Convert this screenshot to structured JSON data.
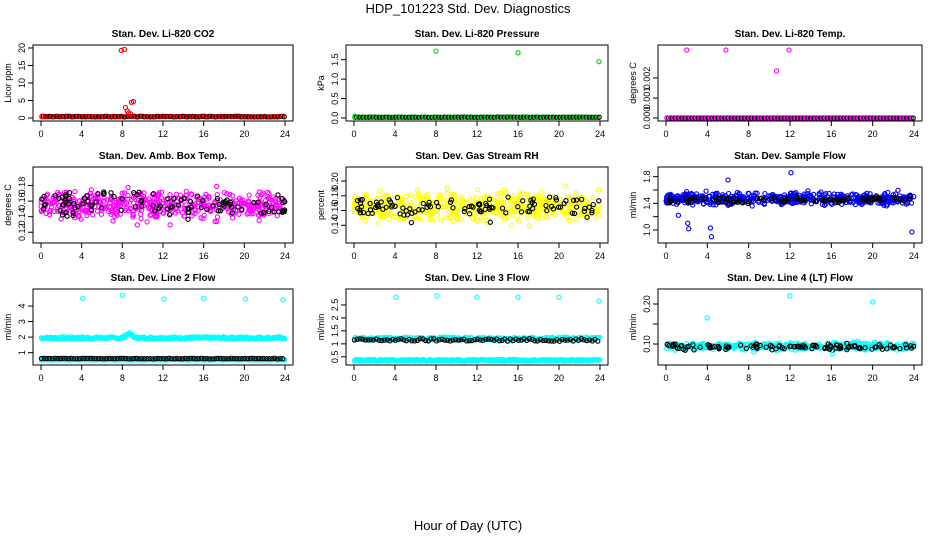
{
  "title": "HDP_101223  Std. Dev. Diagnostics",
  "xlabel": "Hour of Day (UTC)",
  "chart_data": [
    {
      "id": "p1",
      "type": "scatter",
      "title": "Stan. Dev. Li-820 CO2",
      "ylabel": "Licor ppm",
      "xlim": [
        0,
        24
      ],
      "xticks": [
        0,
        4,
        8,
        12,
        16,
        20,
        24
      ],
      "xtick_labels": [
        "0",
        "4",
        "8",
        "12",
        "16",
        "20",
        "24"
      ],
      "ylim": [
        0,
        20
      ],
      "yticks": [
        0,
        5,
        10,
        15,
        20
      ],
      "ytick_labels": [
        "0",
        "5",
        "10",
        "15",
        "20"
      ],
      "base_color": "#000000",
      "baseline": {
        "color": "#ff0000",
        "center": 0.4,
        "jitter": 0.2
      },
      "series": [
        {
          "name": "red",
          "color": "#ff0000",
          "points": [
            [
              0.1,
              0.5
            ],
            [
              7.9,
              19.3
            ],
            [
              8.2,
              19.6
            ],
            [
              8.3,
              3.0
            ],
            [
              8.5,
              2.0
            ],
            [
              8.6,
              1.4
            ],
            [
              8.9,
              4.5
            ],
            [
              9.1,
              4.7
            ],
            [
              8.8,
              1.2
            ]
          ]
        }
      ]
    },
    {
      "id": "p2",
      "type": "scatter",
      "title": "Stan. Dev. Li-820 Pressure",
      "ylabel": "kPa",
      "xlim": [
        0,
        24
      ],
      "xticks": [
        0,
        4,
        8,
        12,
        16,
        20,
        24
      ],
      "xtick_labels": [
        "0",
        "4",
        "8",
        "12",
        "16",
        "20",
        "24"
      ],
      "ylim": [
        0,
        1.8
      ],
      "yticks": [
        0,
        0.5,
        1.0,
        1.5
      ],
      "ytick_labels": [
        "0.0",
        "0.5",
        "1.0",
        "1.5"
      ],
      "base_color": "#000000",
      "baseline": {
        "color": "#00cc00",
        "center": 0.02,
        "jitter": 0.01
      },
      "series": [
        {
          "name": "green",
          "color": "#00cc00",
          "points": [
            [
              8.0,
              1.72
            ],
            [
              16.0,
              1.68
            ],
            [
              23.9,
              1.45
            ],
            [
              0.1,
              0.05
            ]
          ]
        }
      ]
    },
    {
      "id": "p3",
      "type": "scatter",
      "title": "Stan. Dev. Li-820 Temp.",
      "ylabel": "degrees C",
      "xlim": [
        0,
        24
      ],
      "xticks": [
        0,
        4,
        8,
        12,
        16,
        20,
        24
      ],
      "xtick_labels": [
        "0",
        "4",
        "8",
        "12",
        "16",
        "20",
        "24"
      ],
      "ylim": [
        0,
        0.0035
      ],
      "yticks": [
        0,
        0.001,
        0.002
      ],
      "ytick_labels": [
        "0.000",
        "0.001",
        "0.002"
      ],
      "base_color": "#000000",
      "baseline": {
        "color": "#ff00ff",
        "center": 0.0,
        "jitter": 0
      },
      "series": [
        {
          "name": "magenta",
          "color": "#ff00ff",
          "points": [
            [
              2.0,
              0.0034
            ],
            [
              5.8,
              0.0034
            ],
            [
              11.9,
              0.0034
            ],
            [
              10.7,
              0.00235
            ],
            [
              0.1,
              0.0
            ]
          ]
        }
      ]
    },
    {
      "id": "p4",
      "type": "scatter",
      "title": "Stan. Dev. Amb. Box Temp.",
      "ylabel": "degrees C",
      "xlim": [
        0,
        24
      ],
      "xticks": [
        0,
        4,
        8,
        12,
        16,
        20,
        24
      ],
      "xtick_labels": [
        "0",
        "4",
        "8",
        "12",
        "16",
        "20",
        "24"
      ],
      "ylim": [
        0.11,
        0.2
      ],
      "yticks": [
        0.12,
        0.14,
        0.16,
        0.18
      ],
      "ytick_labels": [
        "0.12",
        "0.14",
        "0.16",
        "0.18"
      ],
      "base_color": "#000000",
      "cloud": {
        "color": "#ff00ff",
        "center": 0.155,
        "spread": 0.018,
        "count": 470,
        "seed": 4
      },
      "overlay": {
        "color": "#000000",
        "center": 0.155,
        "spread": 0.015,
        "count": 110,
        "seed": 14
      },
      "series": []
    },
    {
      "id": "p5",
      "type": "scatter",
      "title": "Stan. Dev. Gas Stream RH",
      "ylabel": "percent",
      "xlim": [
        0,
        24
      ],
      "xticks": [
        0,
        4,
        8,
        12,
        16,
        20,
        24
      ],
      "xtick_labels": [
        "0",
        "4",
        "8",
        "12",
        "16",
        "20",
        "24"
      ],
      "ylim": [
        0.12,
        0.215
      ],
      "yticks": [
        0.14,
        0.16,
        0.18,
        0.2
      ],
      "ytick_labels": [
        "0.14",
        "0.16",
        "0.18",
        "0.20"
      ],
      "base_color": "#000000",
      "cloud": {
        "color": "#ffff00",
        "center": 0.165,
        "spread": 0.02,
        "count": 470,
        "seed": 5
      },
      "overlay": {
        "color": "#000000",
        "center": 0.165,
        "spread": 0.015,
        "count": 110,
        "seed": 15
      },
      "series": []
    },
    {
      "id": "p6",
      "type": "scatter",
      "title": "Stan. Dev. Sample Flow",
      "ylabel": "ml/min",
      "xlim": [
        0,
        24
      ],
      "xticks": [
        0,
        4,
        8,
        12,
        16,
        20,
        24
      ],
      "xtick_labels": [
        "0",
        "4",
        "8",
        "12",
        "16",
        "20",
        "24"
      ],
      "ylim": [
        0.85,
        1.9
      ],
      "yticks": [
        1.0,
        1.2,
        1.4,
        1.6,
        1.8
      ],
      "ytick_labels": [
        "1.0",
        "",
        "1.4",
        "",
        "1.8"
      ],
      "base_color": "#000000",
      "cloud": {
        "color": "#0000ff",
        "center": 1.47,
        "spread": 0.09,
        "count": 470,
        "seed": 6
      },
      "overlay": {
        "color": "#000000",
        "center": 1.45,
        "spread": 0.05,
        "count": 110,
        "seed": 16
      },
      "series": [
        {
          "name": "blue-outliers",
          "color": "#0000ff",
          "points": [
            [
              4.4,
              0.9
            ],
            [
              4.3,
              1.03
            ],
            [
              2.2,
              1.02
            ],
            [
              2.1,
              1.1
            ],
            [
              23.8,
              0.97
            ],
            [
              12.1,
              1.86
            ],
            [
              1.2,
              1.22
            ],
            [
              6.0,
              1.75
            ]
          ]
        }
      ]
    },
    {
      "id": "p7",
      "type": "scatter",
      "title": "Stan. Dev. Line 2 Flow",
      "ylabel": "ml/min",
      "xlim": [
        0,
        24
      ],
      "xticks": [
        0,
        4,
        8,
        12,
        16,
        20,
        24
      ],
      "xtick_labels": [
        "0",
        "4",
        "8",
        "12",
        "16",
        "20",
        "24"
      ],
      "ylim": [
        0.4,
        4.9
      ],
      "yticks": [
        1,
        2,
        3,
        4
      ],
      "ytick_labels": [
        "1",
        "2",
        "3",
        "4"
      ],
      "base_color": "#000000",
      "bands": [
        {
          "color": "#00ffff",
          "center": 1.95,
          "jitter": 0.07,
          "count": 260,
          "seed": 7,
          "bump": [
            8,
            9.3,
            0.3
          ]
        },
        {
          "color": "#00ffff",
          "center": 0.55,
          "jitter": 0.02,
          "count": 260,
          "seed": 27
        },
        {
          "color": "#000000",
          "center": 0.62,
          "jitter": 0.02,
          "count": 90,
          "seed": 37
        }
      ],
      "series": [
        {
          "name": "cyan-high",
          "color": "#00ffff",
          "points": [
            [
              4.1,
              4.5
            ],
            [
              8.0,
              4.7
            ],
            [
              12.1,
              4.45
            ],
            [
              16.0,
              4.5
            ],
            [
              20.1,
              4.45
            ],
            [
              23.8,
              4.4
            ]
          ]
        }
      ]
    },
    {
      "id": "p8",
      "type": "scatter",
      "title": "Stan. Dev. Line 3 Flow",
      "ylabel": "ml/min",
      "xlim": [
        0,
        24
      ],
      "xticks": [
        0,
        4,
        8,
        12,
        16,
        20,
        24
      ],
      "xtick_labels": [
        "0",
        "4",
        "8",
        "12",
        "16",
        "20",
        "24"
      ],
      "ylim": [
        0.3,
        3.0
      ],
      "yticks": [
        0.5,
        1.0,
        1.5,
        2.0,
        2.5
      ],
      "ytick_labels": [
        "0.5",
        "1",
        "1.5",
        "2",
        "2.5"
      ],
      "base_color": "#000000",
      "bands": [
        {
          "color": "#00ffff",
          "center": 1.2,
          "jitter": 0.06,
          "count": 260,
          "seed": 8
        },
        {
          "color": "#00ffff",
          "center": 0.37,
          "jitter": 0.03,
          "count": 260,
          "seed": 28
        },
        {
          "color": "#000000",
          "center": 1.15,
          "jitter": 0.05,
          "count": 90,
          "seed": 38
        }
      ],
      "series": [
        {
          "name": "cyan-high",
          "color": "#00ffff",
          "points": [
            [
              4.1,
              2.8
            ],
            [
              8.1,
              2.85
            ],
            [
              12.0,
              2.8
            ],
            [
              16.0,
              2.8
            ],
            [
              20.0,
              2.8
            ],
            [
              23.9,
              2.65
            ]
          ]
        }
      ]
    },
    {
      "id": "p9",
      "type": "scatter",
      "title": "Stan. Dev. Line 4 (LT) Flow",
      "ylabel": "ml/min",
      "xlim": [
        0,
        24
      ],
      "xticks": [
        0,
        4,
        8,
        12,
        16,
        20,
        24
      ],
      "xtick_labels": [
        "0",
        "4",
        "8",
        "12",
        "16",
        "20",
        "24"
      ],
      "ylim": [
        0.055,
        0.23
      ],
      "yticks": [
        0.1,
        0.15,
        0.2
      ],
      "ytick_labels": [
        "0.10",
        "",
        "0.20"
      ],
      "base_color": "#000000",
      "cloud": {
        "color": "#00ffff",
        "center": 0.095,
        "spread": 0.008,
        "count": 470,
        "seed": 9
      },
      "overlay": {
        "color": "#000000",
        "center": 0.093,
        "spread": 0.008,
        "count": 110,
        "seed": 19
      },
      "series": [
        {
          "name": "cyan-high",
          "color": "#00ffff",
          "points": [
            [
              4.0,
              0.165
            ],
            [
              12.0,
              0.22
            ],
            [
              20.0,
              0.205
            ],
            [
              8.5,
              0.08
            ],
            [
              16.1,
              0.075
            ]
          ]
        }
      ]
    }
  ]
}
